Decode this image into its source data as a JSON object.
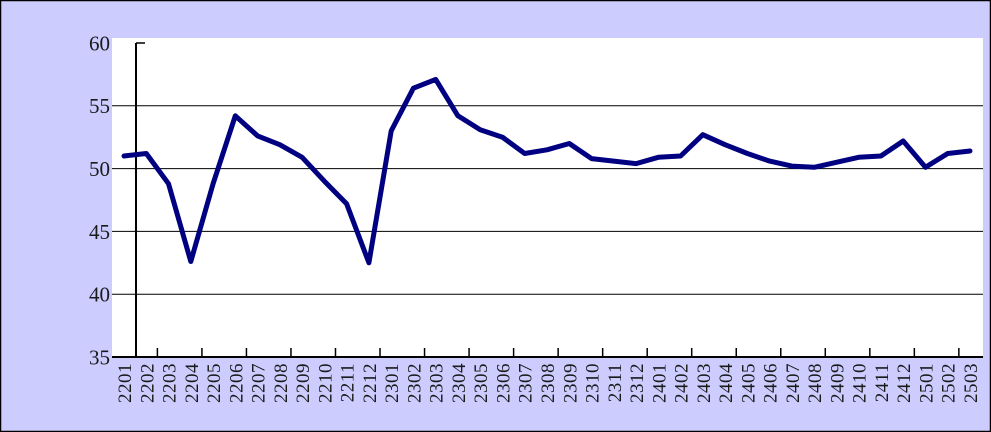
{
  "chart_data": {
    "type": "line",
    "categories": [
      "2201",
      "2202",
      "2203",
      "2204",
      "2205",
      "2206",
      "2207",
      "2208",
      "2209",
      "2210",
      "2211",
      "2212",
      "2301",
      "2302",
      "2303",
      "2304",
      "2305",
      "2306",
      "2307",
      "2308",
      "2309",
      "2310",
      "2311",
      "2312",
      "2401",
      "2402",
      "2403",
      "2404",
      "2405",
      "2406",
      "2407",
      "2408",
      "2409",
      "2410",
      "2411",
      "2412",
      "2501",
      "2502",
      "2503"
    ],
    "values": [
      51.0,
      51.2,
      48.8,
      42.6,
      48.8,
      54.2,
      52.6,
      51.9,
      50.9,
      49.0,
      47.2,
      42.5,
      53.0,
      56.4,
      57.1,
      54.2,
      53.1,
      52.5,
      51.2,
      51.5,
      52.0,
      50.8,
      50.6,
      50.4,
      50.9,
      51.0,
      52.7,
      51.9,
      51.2,
      50.6,
      50.2,
      50.1,
      50.5,
      50.9,
      51.0,
      52.2,
      50.1,
      51.2,
      51.4
    ],
    "title": "",
    "xlabel": "",
    "ylabel": "",
    "ylim": [
      35,
      60
    ],
    "yticks": [
      60,
      55,
      50,
      45,
      40,
      35
    ],
    "grid": true,
    "legend_position": "none",
    "x_tick_interval": 2,
    "x_label_rotation_deg": -90,
    "colors": {
      "line": "#000080",
      "chart_background": "#CCCCFF",
      "plot_background": "#FFFFFF",
      "axis": "#000000",
      "gridline": "#000000",
      "tick_label": "#1A1A1A",
      "outer_border": "#000000"
    }
  }
}
